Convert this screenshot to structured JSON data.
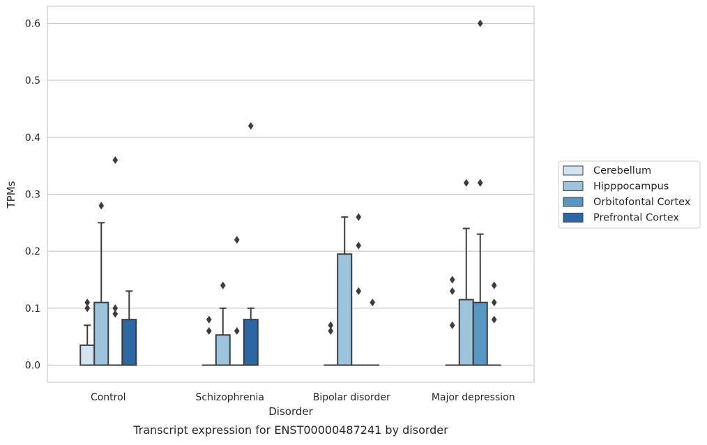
{
  "chart_data": {
    "type": "box",
    "title": "",
    "caption": "Transcript expression for ENST00000487241 by disorder",
    "xlabel": "Disorder",
    "ylabel": "TPMs",
    "ylim": [
      -0.03,
      0.63
    ],
    "yticks": [
      0.0,
      0.1,
      0.2,
      0.3,
      0.4,
      0.5,
      0.6
    ],
    "ytick_labels": [
      "0.0",
      "0.1",
      "0.2",
      "0.3",
      "0.4",
      "0.5",
      "0.6"
    ],
    "grid": true,
    "legend_position": "right",
    "categories": [
      "Control",
      "Schizophrenia",
      "Bipolar disorder",
      "Major depression"
    ],
    "series": [
      {
        "name": "Cerebellum",
        "color": "#d4e3f2",
        "boxes": [
          {
            "q1": 0.0,
            "median": 0.0,
            "q3": 0.035,
            "whisker_low": 0.0,
            "whisker_high": 0.07,
            "outliers": [
              0.1,
              0.11
            ]
          },
          {
            "q1": 0.0,
            "median": 0.0,
            "q3": 0.0,
            "whisker_low": 0.0,
            "whisker_high": 0.0,
            "outliers": [
              0.06,
              0.08
            ]
          },
          {
            "q1": 0.0,
            "median": 0.0,
            "q3": 0.0,
            "whisker_low": 0.0,
            "whisker_high": 0.0,
            "outliers": [
              0.06,
              0.07
            ]
          },
          {
            "q1": 0.0,
            "median": 0.0,
            "q3": 0.0,
            "whisker_low": 0.0,
            "whisker_high": 0.0,
            "outliers": [
              0.07,
              0.13,
              0.15
            ]
          }
        ]
      },
      {
        "name": "Hipppocampus",
        "color": "#9cc4dd",
        "boxes": [
          {
            "q1": 0.0,
            "median": 0.0,
            "q3": 0.11,
            "whisker_low": 0.0,
            "whisker_high": 0.25,
            "outliers": [
              0.28
            ]
          },
          {
            "q1": 0.0,
            "median": 0.0,
            "q3": 0.053,
            "whisker_low": 0.0,
            "whisker_high": 0.1,
            "outliers": [
              0.14
            ]
          },
          {
            "q1": 0.0,
            "median": 0.0,
            "q3": 0.195,
            "whisker_low": 0.0,
            "whisker_high": 0.26,
            "outliers": []
          },
          {
            "q1": 0.0,
            "median": 0.0,
            "q3": 0.115,
            "whisker_low": 0.0,
            "whisker_high": 0.24,
            "outliers": [
              0.32
            ]
          }
        ]
      },
      {
        "name": "Orbitofontal Cortex",
        "color": "#5996c1",
        "boxes": [
          {
            "q1": 0.0,
            "median": 0.0,
            "q3": 0.0,
            "whisker_low": 0.0,
            "whisker_high": 0.0,
            "outliers": [
              0.09,
              0.1,
              0.36
            ]
          },
          {
            "q1": 0.0,
            "median": 0.0,
            "q3": 0.0,
            "whisker_low": 0.0,
            "whisker_high": 0.0,
            "outliers": [
              0.06,
              0.22
            ]
          },
          {
            "q1": 0.0,
            "median": 0.0,
            "q3": 0.0,
            "whisker_low": 0.0,
            "whisker_high": 0.0,
            "outliers": [
              0.13,
              0.21,
              0.26
            ]
          },
          {
            "q1": 0.0,
            "median": 0.0,
            "q3": 0.11,
            "whisker_low": 0.0,
            "whisker_high": 0.23,
            "outliers": [
              0.32,
              0.6
            ]
          }
        ]
      },
      {
        "name": "Prefrontal Cortex",
        "color": "#2a67a3",
        "boxes": [
          {
            "q1": 0.0,
            "median": 0.0,
            "q3": 0.08,
            "whisker_low": 0.0,
            "whisker_high": 0.13,
            "outliers": []
          },
          {
            "q1": 0.0,
            "median": 0.0,
            "q3": 0.08,
            "whisker_low": 0.0,
            "whisker_high": 0.1,
            "outliers": [
              0.42
            ]
          },
          {
            "q1": 0.0,
            "median": 0.0,
            "q3": 0.0,
            "whisker_low": 0.0,
            "whisker_high": 0.0,
            "outliers": [
              0.11
            ]
          },
          {
            "q1": 0.0,
            "median": 0.0,
            "q3": 0.0,
            "whisker_low": 0.0,
            "whisker_high": 0.0,
            "outliers": [
              0.08,
              0.11,
              0.14
            ]
          }
        ]
      }
    ]
  }
}
